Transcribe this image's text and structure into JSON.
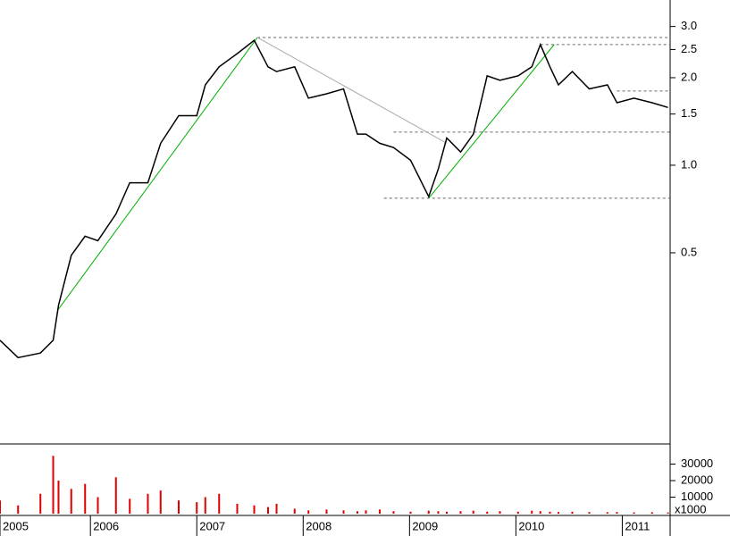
{
  "chart_data": [
    {
      "type": "line",
      "log": true,
      "color": "#000000",
      "x": [
        2005.15,
        2005.32,
        2005.53,
        2005.65,
        2005.7,
        2005.82,
        2005.95,
        2006.07,
        2006.24,
        2006.37,
        2006.54,
        2006.66,
        2006.83,
        2007.0,
        2007.08,
        2007.21,
        2007.38,
        2007.54,
        2007.67,
        2007.75,
        2007.92,
        2008.05,
        2008.22,
        2008.38,
        2008.51,
        2008.59,
        2008.72,
        2008.85,
        2009.01,
        2009.18,
        2009.27,
        2009.35,
        2009.48,
        2009.6,
        2009.73,
        2009.85,
        2010.02,
        2010.15,
        2010.23,
        2010.32,
        2010.4,
        2010.53,
        2010.69,
        2010.86,
        2010.95,
        2011.11,
        2011.28,
        2011.43
      ],
      "values": [
        0.25,
        0.218,
        0.226,
        0.25,
        0.33,
        0.49,
        0.57,
        0.55,
        0.68,
        0.87,
        0.87,
        1.19,
        1.48,
        1.48,
        1.89,
        2.18,
        2.42,
        2.69,
        2.18,
        2.1,
        2.18,
        1.7,
        1.76,
        1.83,
        1.28,
        1.28,
        1.19,
        1.15,
        1.04,
        0.78,
        0.97,
        1.24,
        1.11,
        1.28,
        2.03,
        1.96,
        2.03,
        2.18,
        2.6,
        2.18,
        1.89,
        2.1,
        1.83,
        1.89,
        1.64,
        1.7,
        1.64,
        1.58
      ],
      "xlim": [
        2005.15,
        2011.45
      ],
      "xticks": [
        {
          "value": 2005.15,
          "label": "2005"
        },
        2006,
        2007,
        2008,
        2009,
        2010,
        2011
      ],
      "ylim": [
        0.11,
        3.7
      ],
      "yticks": [
        {
          "value": 3,
          "label": "3.0"
        },
        2.5,
        {
          "value": 2,
          "label": "2.0"
        },
        1.5,
        {
          "value": 1,
          "label": "1.0"
        },
        0.5
      ],
      "trendlines": [
        {
          "color": "#00b000",
          "x": [
            2005.7,
            2007.57
          ],
          "y": [
            0.32,
            2.75
          ]
        },
        {
          "color": "#00b000",
          "x": [
            2009.18,
            2010.36
          ],
          "y": [
            0.77,
            2.6
          ]
        },
        {
          "color": "#aaaaaa",
          "x": [
            2007.57,
            2009.35
          ],
          "y": [
            2.75,
            1.19
          ]
        }
      ],
      "levels": [
        {
          "value": 2.75,
          "from": 2007.57
        },
        {
          "value": 2.6,
          "from": 2010.23
        },
        {
          "value": 1.8,
          "from": 2010.95
        },
        {
          "value": 1.3,
          "from": 2008.85
        },
        {
          "value": 0.77,
          "from": 2008.76
        }
      ]
    },
    {
      "type": "bar",
      "color": "#e00000",
      "unit_label": "x1000",
      "x": [
        2005.15,
        2005.32,
        2005.53,
        2005.65,
        2005.7,
        2005.82,
        2005.95,
        2006.07,
        2006.24,
        2006.37,
        2006.54,
        2006.66,
        2006.83,
        2007.0,
        2007.08,
        2007.21,
        2007.38,
        2007.54,
        2007.67,
        2007.75,
        2007.92,
        2008.05,
        2008.22,
        2008.38,
        2008.51,
        2008.59,
        2008.72,
        2008.85,
        2009.01,
        2009.18,
        2009.27,
        2009.35,
        2009.48,
        2009.6,
        2009.73,
        2009.85,
        2010.02,
        2010.15,
        2010.23,
        2010.32,
        2010.4,
        2010.53,
        2010.69,
        2010.86,
        2010.95,
        2011.11,
        2011.28,
        2011.43
      ],
      "values": [
        8000,
        5000,
        12000,
        35000,
        20000,
        15000,
        18000,
        10000,
        22000,
        9000,
        12000,
        14000,
        8000,
        7000,
        10000,
        12000,
        6000,
        5000,
        4000,
        6000,
        3000,
        2000,
        2500,
        2000,
        1500,
        2000,
        2500,
        1500,
        1200,
        1800,
        1500,
        1200,
        1500,
        1800,
        1200,
        1500,
        1200,
        1800,
        1500,
        1200,
        1000,
        1200,
        1000,
        900,
        1000,
        800,
        900,
        700
      ],
      "ylim": [
        0,
        40000
      ],
      "yticks": [
        10000,
        20000,
        30000
      ]
    }
  ]
}
